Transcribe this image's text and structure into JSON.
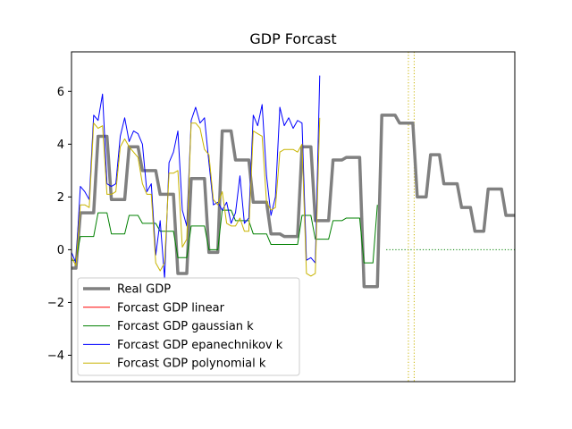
{
  "chart_data": {
    "type": "line",
    "title": "GDP Forcast",
    "xlabel": "",
    "ylabel": "",
    "ylim": [
      -5,
      7.5
    ],
    "xlim": [
      0,
      100
    ],
    "yticks": [
      -4,
      -2,
      0,
      2,
      4,
      6
    ],
    "xticks_visible": false,
    "grid": false,
    "legend": "lower-left",
    "series": [
      {
        "name": "Real GDP",
        "color": "#808080",
        "style": "solid-thick",
        "points": [
          [
            0,
            -0.7
          ],
          [
            1,
            -0.7
          ],
          [
            2,
            1.4
          ],
          [
            5,
            1.4
          ],
          [
            6,
            4.3
          ],
          [
            8,
            4.3
          ],
          [
            9,
            1.9
          ],
          [
            12,
            1.9
          ],
          [
            13,
            3.9
          ],
          [
            15,
            3.9
          ],
          [
            16,
            3.0
          ],
          [
            19,
            3.0
          ],
          [
            20,
            2.1
          ],
          [
            23,
            2.1
          ],
          [
            24,
            -0.9
          ],
          [
            26,
            -0.9
          ],
          [
            27,
            2.7
          ],
          [
            30,
            2.7
          ],
          [
            31,
            -0.1
          ],
          [
            33,
            -0.1
          ],
          [
            34,
            4.5
          ],
          [
            36,
            4.5
          ],
          [
            37,
            3.4
          ],
          [
            40,
            3.4
          ],
          [
            41,
            1.8
          ],
          [
            44,
            1.8
          ],
          [
            45,
            0.6
          ],
          [
            47,
            0.6
          ],
          [
            48,
            0.5
          ],
          [
            51,
            0.5
          ],
          [
            52,
            3.9
          ],
          [
            54,
            3.9
          ],
          [
            55,
            1.1
          ],
          [
            58,
            1.1
          ],
          [
            59,
            3.4
          ],
          [
            61,
            3.4
          ],
          [
            62,
            3.5
          ],
          [
            65,
            3.5
          ],
          [
            66,
            -1.4
          ],
          [
            69,
            -1.4
          ],
          [
            70,
            5.1
          ],
          [
            73,
            5.1
          ],
          [
            74,
            4.8
          ],
          [
            77,
            4.8
          ],
          [
            78,
            2.0
          ],
          [
            80,
            2.0
          ],
          [
            81,
            3.6
          ],
          [
            83,
            3.6
          ],
          [
            84,
            2.5
          ],
          [
            87,
            2.5
          ],
          [
            88,
            1.6
          ],
          [
            90,
            1.6
          ],
          [
            91,
            0.7
          ],
          [
            93,
            0.7
          ],
          [
            94,
            2.3
          ],
          [
            97,
            2.3
          ],
          [
            98,
            1.3
          ],
          [
            100,
            1.3
          ]
        ]
      },
      {
        "name": "Forcast GDP linear",
        "color": "#ff0000",
        "style": "solid",
        "points": []
      },
      {
        "name": "Forcast GDP gaussian k",
        "color": "#008000",
        "style": "solid",
        "points": [
          [
            0,
            -0.4
          ],
          [
            1,
            -0.4
          ],
          [
            2,
            0.5
          ],
          [
            5,
            0.5
          ],
          [
            6,
            1.4
          ],
          [
            8,
            1.4
          ],
          [
            9,
            0.6
          ],
          [
            12,
            0.6
          ],
          [
            13,
            1.3
          ],
          [
            15,
            1.3
          ],
          [
            16,
            1.0
          ],
          [
            19,
            1.0
          ],
          [
            20,
            0.7
          ],
          [
            23,
            0.7
          ],
          [
            24,
            -0.3
          ],
          [
            26,
            -0.3
          ],
          [
            27,
            0.9
          ],
          [
            30,
            0.9
          ],
          [
            31,
            0.0
          ],
          [
            33,
            0.0
          ],
          [
            34,
            1.5
          ],
          [
            36,
            1.5
          ],
          [
            37,
            1.1
          ],
          [
            40,
            1.1
          ],
          [
            41,
            0.6
          ],
          [
            44,
            0.6
          ],
          [
            45,
            0.2
          ],
          [
            47,
            0.2
          ],
          [
            48,
            0.2
          ],
          [
            51,
            0.2
          ],
          [
            52,
            1.3
          ],
          [
            54,
            1.3
          ],
          [
            55,
            0.4
          ],
          [
            58,
            0.4
          ],
          [
            59,
            1.1
          ],
          [
            61,
            1.1
          ],
          [
            62,
            1.2
          ],
          [
            65,
            1.2
          ],
          [
            66,
            -0.5
          ],
          [
            68,
            -0.5
          ],
          [
            69,
            1.7
          ]
        ]
      },
      {
        "name": "Forcast GDP epanechnikov k",
        "color": "#0000ff",
        "style": "solid",
        "points": [
          [
            0,
            -0.1
          ],
          [
            1,
            -0.5
          ],
          [
            2,
            2.4
          ],
          [
            3,
            2.2
          ],
          [
            4,
            1.9
          ],
          [
            5,
            5.1
          ],
          [
            6,
            4.9
          ],
          [
            7,
            5.9
          ],
          [
            8,
            2.5
          ],
          [
            9,
            2.4
          ],
          [
            10,
            2.5
          ],
          [
            11,
            4.3
          ],
          [
            12,
            5.0
          ],
          [
            13,
            4.1
          ],
          [
            14,
            4.5
          ],
          [
            15,
            4.4
          ],
          [
            16,
            4.0
          ],
          [
            17,
            2.2
          ],
          [
            18,
            2.5
          ],
          [
            19,
            -0.2
          ],
          [
            20,
            1.1
          ],
          [
            21,
            -1.1
          ],
          [
            22,
            3.3
          ],
          [
            23,
            3.7
          ],
          [
            24,
            4.5
          ],
          [
            25,
            1.5
          ],
          [
            26,
            0.9
          ],
          [
            27,
            4.9
          ],
          [
            28,
            5.4
          ],
          [
            29,
            4.8
          ],
          [
            30,
            5.0
          ],
          [
            31,
            3.3
          ],
          [
            32,
            1.7
          ],
          [
            33,
            1.8
          ],
          [
            34,
            1.5
          ],
          [
            35,
            1.8
          ],
          [
            36,
            1.0
          ],
          [
            37,
            1.4
          ],
          [
            38,
            2.8
          ],
          [
            39,
            1.0
          ],
          [
            40,
            1.2
          ],
          [
            41,
            5.1
          ],
          [
            42,
            4.7
          ],
          [
            43,
            5.5
          ],
          [
            44,
            2.8
          ],
          [
            45,
            1.3
          ],
          [
            46,
            2.0
          ],
          [
            47,
            5.4
          ],
          [
            48,
            4.7
          ],
          [
            49,
            5.0
          ],
          [
            50,
            4.6
          ],
          [
            51,
            4.9
          ],
          [
            52,
            4.8
          ],
          [
            53,
            -0.4
          ],
          [
            54,
            -0.3
          ],
          [
            55,
            -0.5
          ],
          [
            56,
            6.6
          ]
        ]
      },
      {
        "name": "Forcast GDP polynomial k",
        "color": "#c8b400",
        "style": "solid",
        "points": [
          [
            0,
            -0.3
          ],
          [
            1,
            -0.6
          ],
          [
            2,
            1.7
          ],
          [
            3,
            1.7
          ],
          [
            4,
            1.6
          ],
          [
            5,
            4.8
          ],
          [
            6,
            4.6
          ],
          [
            7,
            4.7
          ],
          [
            8,
            2.1
          ],
          [
            9,
            2.1
          ],
          [
            10,
            2.2
          ],
          [
            11,
            3.9
          ],
          [
            12,
            4.2
          ],
          [
            13,
            3.9
          ],
          [
            14,
            3.7
          ],
          [
            15,
            3.5
          ],
          [
            16,
            2.5
          ],
          [
            17,
            2.1
          ],
          [
            18,
            2.1
          ],
          [
            19,
            -0.5
          ],
          [
            20,
            -0.8
          ],
          [
            21,
            -0.5
          ],
          [
            22,
            2.9
          ],
          [
            23,
            2.9
          ],
          [
            24,
            3.0
          ],
          [
            25,
            0.1
          ],
          [
            26,
            0.4
          ],
          [
            27,
            4.8
          ],
          [
            28,
            4.8
          ],
          [
            29,
            4.6
          ],
          [
            30,
            3.8
          ],
          [
            31,
            3.6
          ],
          [
            32,
            1.9
          ],
          [
            33,
            1.7
          ],
          [
            34,
            2.2
          ],
          [
            35,
            1.0
          ],
          [
            36,
            0.9
          ],
          [
            37,
            0.9
          ],
          [
            38,
            1.2
          ],
          [
            39,
            0.7
          ],
          [
            40,
            0.7
          ],
          [
            41,
            4.5
          ],
          [
            42,
            4.4
          ],
          [
            43,
            4.3
          ],
          [
            44,
            1.8
          ],
          [
            45,
            1.5
          ],
          [
            46,
            1.6
          ],
          [
            47,
            3.7
          ],
          [
            48,
            3.8
          ],
          [
            49,
            3.8
          ],
          [
            50,
            3.8
          ],
          [
            51,
            3.7
          ],
          [
            52,
            4.0
          ],
          [
            53,
            -0.9
          ],
          [
            54,
            -1.0
          ],
          [
            55,
            -0.9
          ],
          [
            56,
            5.0
          ]
        ]
      }
    ],
    "reference_lines": [
      {
        "orientation": "horizontal",
        "y": 0,
        "x_from": 71,
        "x_to": 100,
        "color": "#008000",
        "style": "dotted"
      },
      {
        "orientation": "vertical",
        "x": 76,
        "color": "#c8b400",
        "style": "dotted"
      },
      {
        "orientation": "vertical",
        "x": 77.3,
        "color": "#c8b400",
        "style": "dotted"
      }
    ]
  }
}
